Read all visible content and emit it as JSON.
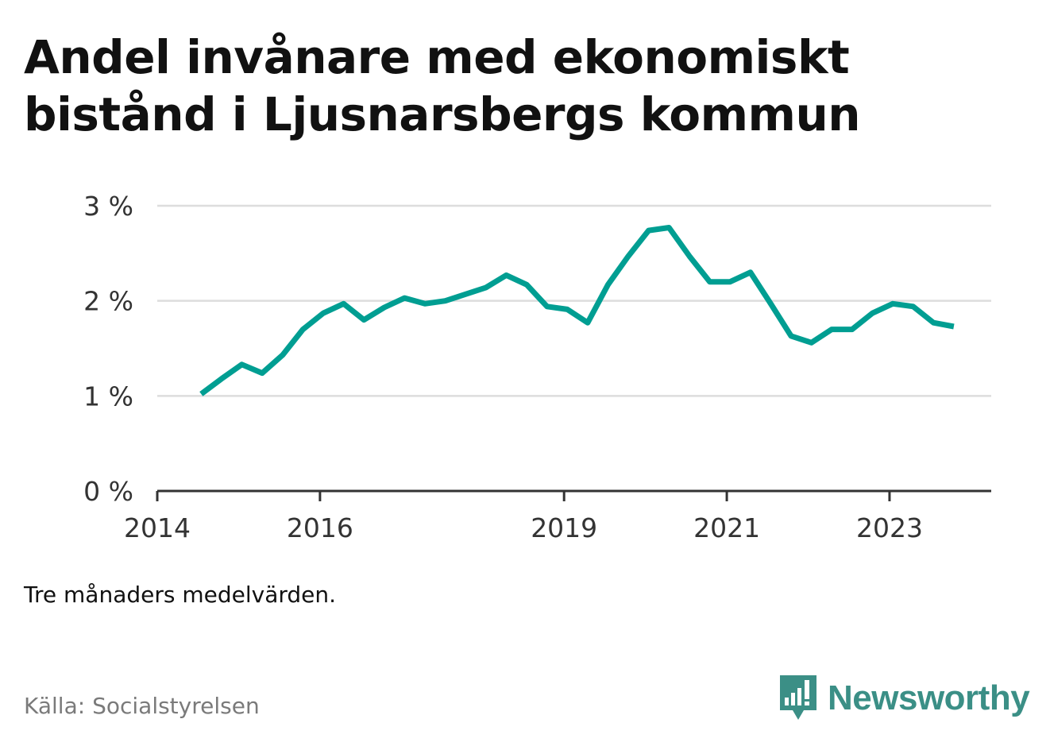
{
  "title": "Andel invånare med ekonomiskt bistånd i Ljusnarsbergs kommun",
  "note": "Tre månaders medelvärden.",
  "source": "Källa: Socialstyrelsen",
  "brand": {
    "name": "Newsworthy",
    "icon": "newsworthy-logo-icon",
    "color": "#3b8f86"
  },
  "chart_data": {
    "type": "line",
    "title": "Andel invånare med ekonomiskt bistånd i Ljusnarsbergs kommun",
    "xlabel": "",
    "ylabel": "",
    "ylim": [
      0,
      3
    ],
    "xlim": [
      2014.0,
      2024.25
    ],
    "grid": true,
    "legend": "none",
    "line_color": "#009e92",
    "y_ticks": [
      {
        "value": 0,
        "label": "0 %"
      },
      {
        "value": 1,
        "label": "1 %"
      },
      {
        "value": 2,
        "label": "2 %"
      },
      {
        "value": 3,
        "label": "3 %"
      }
    ],
    "x_ticks": [
      {
        "value": 2014,
        "label": "2014"
      },
      {
        "value": 2016,
        "label": "2016"
      },
      {
        "value": 2019,
        "label": "2019"
      },
      {
        "value": 2021,
        "label": "2021"
      },
      {
        "value": 2023,
        "label": "2023"
      }
    ],
    "series": [
      {
        "x": [
          2014.54,
          2014.79,
          2015.04,
          2015.29,
          2015.54,
          2015.79,
          2016.04,
          2016.29,
          2016.54,
          2016.79,
          2017.04,
          2017.29,
          2017.54,
          2017.79,
          2018.04,
          2018.29,
          2018.54,
          2018.79,
          2019.04,
          2019.29,
          2019.54,
          2019.79,
          2020.04,
          2020.29,
          2020.54,
          2020.79,
          2021.04,
          2021.29,
          2021.54,
          2021.79,
          2022.04,
          2022.29,
          2022.54,
          2022.79,
          2023.04,
          2023.29,
          2023.54,
          2023.79
        ],
        "y": [
          1.02,
          1.18,
          1.33,
          1.24,
          1.43,
          1.7,
          1.87,
          1.97,
          1.8,
          1.93,
          2.03,
          1.97,
          2.0,
          2.07,
          2.14,
          2.27,
          2.17,
          1.94,
          1.91,
          1.77,
          2.17,
          2.47,
          2.74,
          2.77,
          2.47,
          2.2,
          2.2,
          2.3,
          1.97,
          1.63,
          1.56,
          1.7,
          1.7,
          1.87,
          1.97,
          1.94,
          1.77,
          1.73
        ]
      }
    ]
  }
}
